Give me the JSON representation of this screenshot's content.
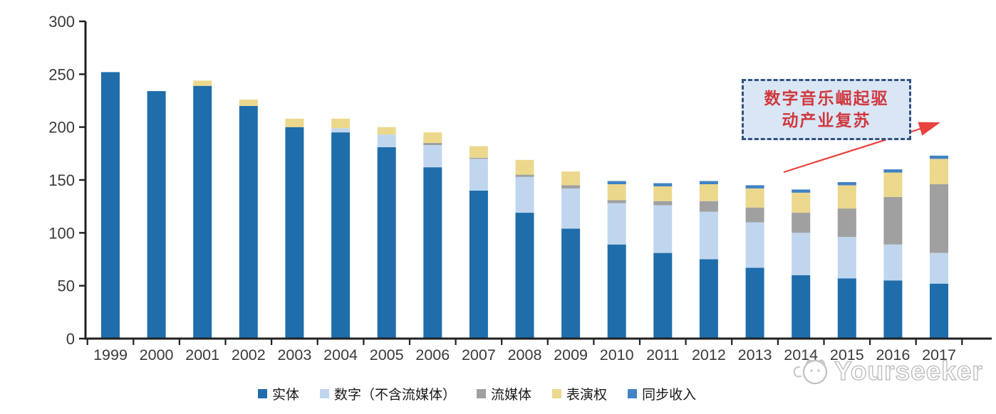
{
  "chart_data": {
    "type": "bar",
    "stacked": true,
    "title": "",
    "xlabel": "",
    "ylabel": "",
    "ylim": [
      0,
      300
    ],
    "yticks": [
      0,
      50,
      100,
      150,
      200,
      250,
      300
    ],
    "grid": false,
    "legend_position": "bottom",
    "categories": [
      "1999",
      "2000",
      "2001",
      "2002",
      "2003",
      "2004",
      "2005",
      "2006",
      "2007",
      "2008",
      "2009",
      "2010",
      "2011",
      "2012",
      "2013",
      "2014",
      "2015",
      "2016",
      "2017"
    ],
    "series": [
      {
        "name": "实体",
        "color": "#1f6dab",
        "values": [
          252,
          234,
          239,
          220,
          200,
          195,
          181,
          162,
          140,
          119,
          104,
          89,
          81,
          75,
          67,
          60,
          57,
          55,
          52
        ]
      },
      {
        "name": "数字（不含流媒体）",
        "color": "#c0d6ef",
        "values": [
          0,
          0,
          0,
          0,
          0,
          4,
          12,
          21,
          30,
          34,
          38,
          39,
          45,
          45,
          43,
          40,
          39,
          34,
          29
        ]
      },
      {
        "name": "流媒体",
        "color": "#a0a0a0",
        "values": [
          0,
          0,
          0,
          0,
          0,
          0,
          0,
          2,
          1,
          2,
          3,
          3,
          4,
          10,
          14,
          19,
          27,
          45,
          65
        ]
      },
      {
        "name": "表演权",
        "color": "#ecd88d",
        "values": [
          0,
          0,
          5,
          6,
          8,
          9,
          7,
          10,
          11,
          14,
          13,
          15,
          14,
          16,
          18,
          19,
          22,
          23,
          24
        ]
      },
      {
        "name": "同步收入",
        "color": "#4183c4",
        "values": [
          0,
          0,
          0,
          0,
          0,
          0,
          0,
          0,
          0,
          0,
          0,
          3,
          3,
          3,
          3,
          3,
          3,
          3,
          3
        ]
      }
    ]
  },
  "annotation": {
    "text": "数字音乐崛起驱动产业复苏",
    "line1": "数字音乐崛起驱",
    "line2": "动产业复苏",
    "text_color": "#d0383e",
    "border_color": "#33517e",
    "fill_color": "#d9e6f5",
    "arrow_color": "#e8433e"
  },
  "watermark": {
    "text": "Yourseeker"
  }
}
